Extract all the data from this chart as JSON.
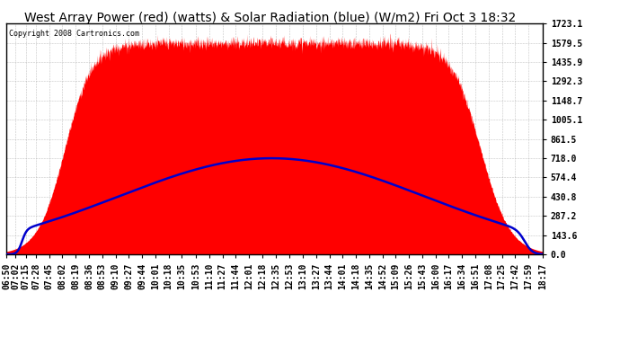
{
  "title": "West Array Power (red) (watts) & Solar Radiation (blue) (W/m2) Fri Oct 3 18:32",
  "copyright": "Copyright 2008 Cartronics.com",
  "background_color": "#ffffff",
  "plot_bg_color": "#ffffff",
  "grid_color": "#aaaaaa",
  "y_max": 1723.1,
  "y_min": 0.0,
  "y_ticks": [
    0.0,
    143.6,
    287.2,
    430.8,
    574.4,
    718.0,
    861.5,
    1005.1,
    1148.7,
    1292.3,
    1435.9,
    1579.5,
    1723.1
  ],
  "x_labels": [
    "06:50",
    "07:02",
    "07:15",
    "07:28",
    "07:45",
    "08:02",
    "08:19",
    "08:36",
    "08:53",
    "09:10",
    "09:27",
    "09:44",
    "10:01",
    "10:18",
    "10:35",
    "10:53",
    "11:10",
    "11:27",
    "11:44",
    "12:01",
    "12:18",
    "12:35",
    "12:53",
    "13:10",
    "13:27",
    "13:44",
    "14:01",
    "14:18",
    "14:35",
    "14:52",
    "15:09",
    "15:26",
    "15:43",
    "16:00",
    "16:17",
    "16:34",
    "16:51",
    "17:08",
    "17:25",
    "17:42",
    "17:59",
    "18:17"
  ],
  "red_fill_color": "#ff0000",
  "blue_line_color": "#0000cc",
  "title_fontsize": 10,
  "tick_fontsize": 7,
  "fig_width": 6.9,
  "fig_height": 3.75,
  "dpi": 100
}
